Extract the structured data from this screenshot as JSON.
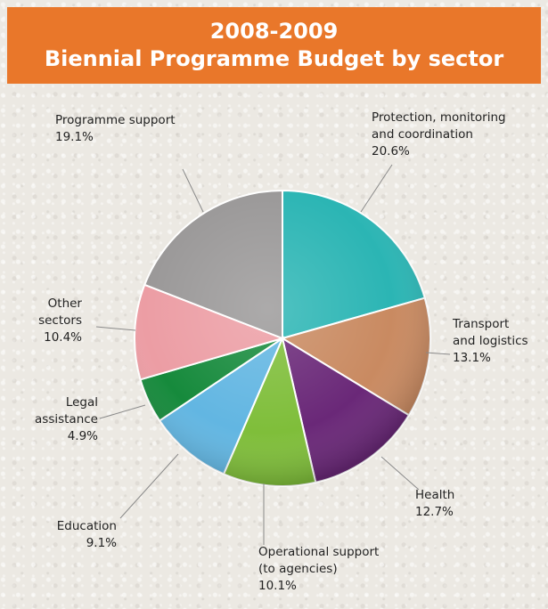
{
  "header": {
    "title_line1": "2008-2009",
    "title_line2": "Biennial Programme Budget by sector"
  },
  "chart_data": {
    "type": "pie",
    "title": "2008-2009 Biennial Programme Budget by sector",
    "unit": "%",
    "slices": [
      {
        "label": [
          "Protection, monitoring",
          "and coordination"
        ],
        "value": 20.6,
        "value_text": "20.6%",
        "color": "#2bb5b4"
      },
      {
        "label": [
          "Transport",
          "and logistics"
        ],
        "value": 13.1,
        "value_text": "13.1%",
        "color": "#c98a61"
      },
      {
        "label": [
          "Health"
        ],
        "value": 12.7,
        "value_text": "12.7%",
        "color": "#6a2878"
      },
      {
        "label": [
          "Operational support",
          "(to agencies)"
        ],
        "value": 10.1,
        "value_text": "10.1%",
        "color": "#7fbe3a"
      },
      {
        "label": [
          "Education"
        ],
        "value": 9.1,
        "value_text": "9.1%",
        "color": "#62b6e2"
      },
      {
        "label": [
          "Legal",
          "assistance"
        ],
        "value": 4.9,
        "value_text": "4.9%",
        "color": "#168a3c"
      },
      {
        "label": [
          "Other",
          "sectors"
        ],
        "value": 10.4,
        "value_text": "10.4%",
        "color": "#ec9da4"
      },
      {
        "label": [
          "Programme support"
        ],
        "value": 19.1,
        "value_text": "19.1%",
        "color": "#9a9898"
      }
    ]
  }
}
